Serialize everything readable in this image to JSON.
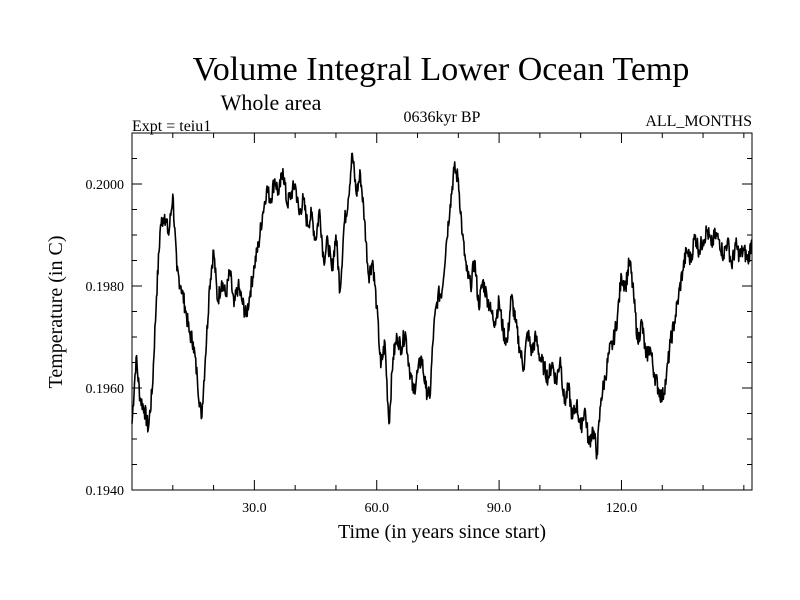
{
  "chart_data": {
    "type": "line",
    "title": "Volume Integral Lower Ocean Temp",
    "subtitle": "Whole area",
    "left_label": "Expt = teiu1",
    "center_label": "0636kyr BP",
    "right_label": "ALL_MONTHS",
    "xlabel": "Time (in years since start)",
    "ylabel": "Temperature (in C)",
    "xlim": [
      0,
      152
    ],
    "ylim": [
      0.194,
      0.201
    ],
    "x_ticks": [
      30,
      60,
      90,
      120
    ],
    "x_tick_labels": [
      "30.0",
      "60.0",
      "90.0",
      "120.0"
    ],
    "y_ticks": [
      0.194,
      0.196,
      0.198,
      0.2
    ],
    "y_tick_labels": [
      "0.1940",
      "0.1960",
      "0.1980",
      "0.2000"
    ],
    "grid": false,
    "series": [
      {
        "name": "Volume Integral Lower Ocean Temp",
        "color": "#000000",
        "x": [
          0,
          1,
          2,
          3,
          4,
          5,
          6,
          7,
          8,
          9,
          10,
          11,
          12,
          13,
          14,
          15,
          16,
          17,
          18,
          19,
          20,
          21,
          22,
          23,
          24,
          25,
          26,
          27,
          28,
          29,
          30,
          31,
          32,
          33,
          34,
          35,
          36,
          37,
          38,
          39,
          40,
          41,
          42,
          43,
          44,
          45,
          46,
          47,
          48,
          49,
          50,
          51,
          52,
          53,
          54,
          55,
          56,
          57,
          58,
          59,
          60,
          61,
          62,
          63,
          64,
          65,
          66,
          67,
          68,
          69,
          70,
          71,
          72,
          73,
          74,
          75,
          76,
          77,
          78,
          79,
          80,
          81,
          82,
          83,
          84,
          85,
          86,
          87,
          88,
          89,
          90,
          91,
          92,
          93,
          94,
          95,
          96,
          97,
          98,
          99,
          100,
          101,
          102,
          103,
          104,
          105,
          106,
          107,
          108,
          109,
          110,
          111,
          112,
          113,
          114,
          115,
          116,
          117,
          118,
          119,
          120,
          121,
          122,
          123,
          124,
          125,
          126,
          127,
          128,
          129,
          130,
          131,
          132,
          133,
          134,
          135,
          136,
          137,
          138,
          139,
          140,
          141,
          142,
          143,
          144,
          145,
          146,
          147,
          148,
          149,
          150,
          151,
          152
        ],
        "values": [
          0.1953,
          0.1966,
          0.1958,
          0.1956,
          0.1952,
          0.196,
          0.1978,
          0.1992,
          0.1994,
          0.199,
          0.1998,
          0.1983,
          0.198,
          0.1976,
          0.1971,
          0.1969,
          0.1962,
          0.1954,
          0.1966,
          0.198,
          0.1987,
          0.1977,
          0.1981,
          0.1978,
          0.1983,
          0.1976,
          0.198,
          0.1977,
          0.1974,
          0.1979,
          0.1984,
          0.1988,
          0.1994,
          0.1999,
          0.1997,
          0.2001,
          0.1998,
          0.2003,
          0.1996,
          0.1998,
          0.2,
          0.1994,
          0.1997,
          0.1992,
          0.1994,
          0.1989,
          0.1995,
          0.1985,
          0.1989,
          0.1983,
          0.199,
          0.1979,
          0.1992,
          0.1997,
          0.2006,
          0.1998,
          0.2002,
          0.1993,
          0.1982,
          0.1985,
          0.1976,
          0.1964,
          0.1969,
          0.1953,
          0.1966,
          0.197,
          0.1968,
          0.1971,
          0.1964,
          0.1959,
          0.1963,
          0.1966,
          0.196,
          0.1958,
          0.1972,
          0.1978,
          0.1979,
          0.1988,
          0.1996,
          0.2003,
          0.2001,
          0.199,
          0.1983,
          0.198,
          0.1985,
          0.1976,
          0.1981,
          0.1978,
          0.1975,
          0.1973,
          0.1977,
          0.1971,
          0.1969,
          0.1978,
          0.1973,
          0.1968,
          0.1964,
          0.1971,
          0.1967,
          0.197,
          0.1966,
          0.1964,
          0.1962,
          0.1965,
          0.1961,
          0.1966,
          0.1957,
          0.196,
          0.1954,
          0.1957,
          0.1952,
          0.1956,
          0.1949,
          0.1952,
          0.1947,
          0.1958,
          0.1962,
          0.1967,
          0.1969,
          0.1974,
          0.1982,
          0.198,
          0.1985,
          0.1978,
          0.1969,
          0.1973,
          0.1966,
          0.1968,
          0.1963,
          0.196,
          0.1958,
          0.1962,
          0.1969,
          0.1973,
          0.1978,
          0.1983,
          0.1987,
          0.1985,
          0.199,
          0.1987,
          0.1989,
          0.1991,
          0.1988,
          0.199,
          0.1989,
          0.1986,
          0.1989,
          0.1984,
          0.1988,
          0.1986,
          0.1987,
          0.1985,
          0.1989
        ]
      }
    ]
  }
}
